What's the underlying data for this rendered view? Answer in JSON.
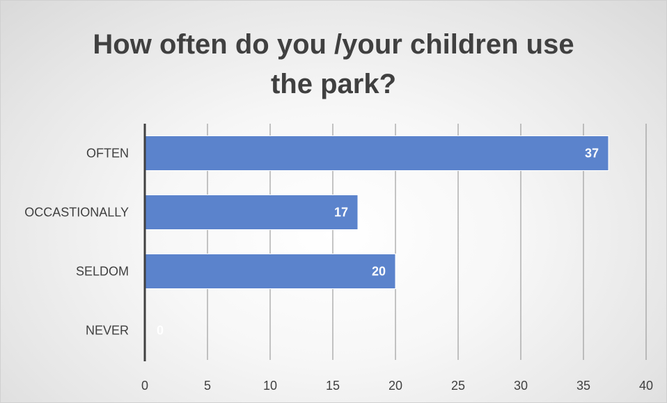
{
  "chart_data": {
    "type": "bar",
    "orientation": "horizontal",
    "title_lines": [
      "How often do you /your children use",
      "the park?"
    ],
    "categories": [
      "OFTEN",
      "OCCASTIONALLY",
      "SELDOM",
      "NEVER"
    ],
    "values": [
      37,
      17,
      20,
      0
    ],
    "data_labels": [
      "37",
      "17",
      "20",
      "0"
    ],
    "xlim": [
      0,
      40
    ],
    "x_ticks": [
      0,
      5,
      10,
      15,
      20,
      25,
      30,
      35,
      40
    ],
    "x_tick_labels": [
      "0",
      "5",
      "10",
      "15",
      "20",
      "25",
      "30",
      "35",
      "40"
    ],
    "grid": "vertical",
    "legend": "none",
    "bar_color": "#5b83cc",
    "axis_color": "#404040",
    "gridline_color": "#8c8c8c"
  }
}
